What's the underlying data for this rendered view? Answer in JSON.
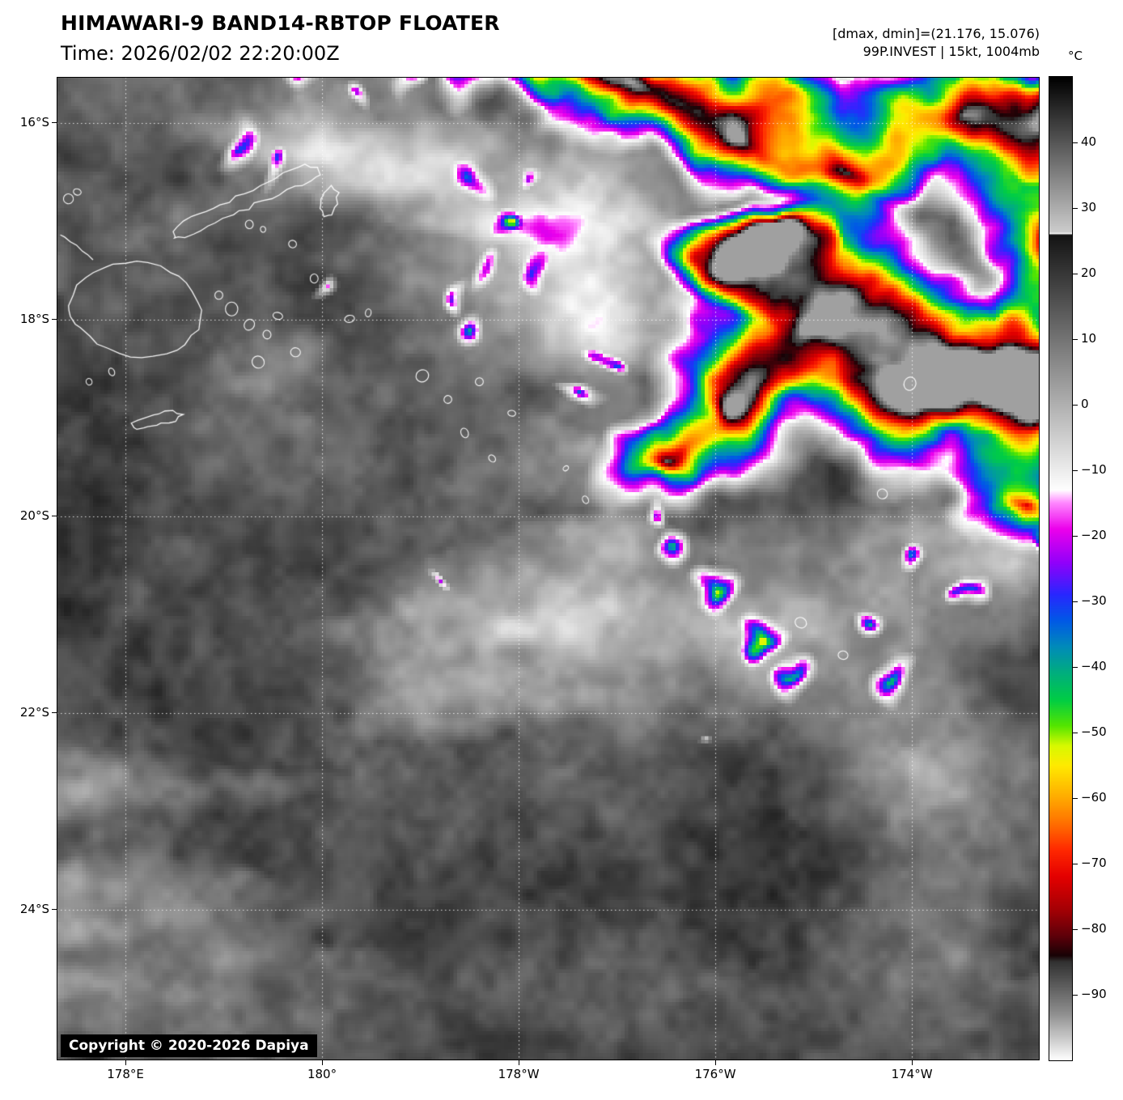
{
  "header": {
    "title": "HIMAWARI-9 BAND14-RBTOP FLOATER",
    "time_label": "Time: 2026/02/02 22:20:00Z",
    "annotation_line1": "[dmax, dmin]=(21.176, 15.076)",
    "annotation_line2": "99P.INVEST | 15kt, 1004mb"
  },
  "colorbar": {
    "unit": "°C",
    "ticks": [
      {
        "value": 40,
        "label": "40"
      },
      {
        "value": 30,
        "label": "30"
      },
      {
        "value": 20,
        "label": "20"
      },
      {
        "value": 10,
        "label": "10"
      },
      {
        "value": 0,
        "label": "0"
      },
      {
        "value": -10,
        "label": "−10"
      },
      {
        "value": -20,
        "label": "−20"
      },
      {
        "value": -30,
        "label": "−30"
      },
      {
        "value": -40,
        "label": "−40"
      },
      {
        "value": -50,
        "label": "−50"
      },
      {
        "value": -60,
        "label": "−60"
      },
      {
        "value": -70,
        "label": "−70"
      },
      {
        "value": -80,
        "label": "−80"
      },
      {
        "value": -90,
        "label": "−90"
      }
    ]
  },
  "map": {
    "lat_labels": [
      "16°S",
      "18°S",
      "20°S",
      "22°S",
      "24°S"
    ],
    "lon_labels": [
      "178°E",
      "180°",
      "178°W",
      "176°W",
      "174°W"
    ],
    "copyright": "Copyright © 2020-2026 Dapiya"
  }
}
